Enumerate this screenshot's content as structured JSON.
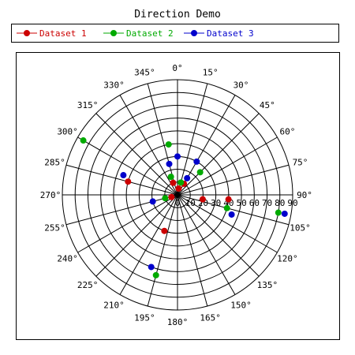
{
  "chart_data": {
    "type": "polar-scatter",
    "title": "Direction Demo",
    "legend_position": "top",
    "grid": true,
    "radial_axis": {
      "min": 0,
      "max": 90,
      "ticks": [
        0,
        10,
        20,
        30,
        40,
        50,
        60,
        70,
        80,
        90
      ],
      "tick_labels": [
        "0",
        "10",
        "20",
        "30",
        "40",
        "50",
        "60",
        "70",
        "80",
        "90"
      ]
    },
    "angular_axis": {
      "zero": "top",
      "direction": "clockwise",
      "ticks": [
        0,
        15,
        30,
        45,
        60,
        75,
        90,
        105,
        120,
        135,
        150,
        165,
        180,
        195,
        210,
        225,
        240,
        255,
        270,
        285,
        300,
        315,
        330,
        345
      ],
      "tick_labels": [
        "0°",
        "15°",
        "30°",
        "45°",
        "60°",
        "75°",
        "90°",
        "105°",
        "120°",
        "135°",
        "150°",
        "165°",
        "180°",
        "195°",
        "210°",
        "225°",
        "240°",
        "255°",
        "270°",
        "285°",
        "300°",
        "315°",
        "330°",
        "345°"
      ]
    },
    "series": [
      {
        "name": "Dataset 1",
        "color": "#cc0000",
        "points": [
          {
            "angle": 100,
            "r": 20
          },
          {
            "angle": 95,
            "r": 40
          },
          {
            "angle": 285,
            "r": 40
          },
          {
            "angle": 200,
            "r": 30
          },
          {
            "angle": 30,
            "r": 10
          },
          {
            "angle": 340,
            "r": 10
          },
          {
            "angle": 250,
            "r": 5
          },
          {
            "angle": 10,
            "r": 5
          }
        ]
      },
      {
        "name": "Dataset 2",
        "color": "#00aa00",
        "points": [
          {
            "angle": 300,
            "r": 85
          },
          {
            "angle": 350,
            "r": 40
          },
          {
            "angle": 45,
            "r": 25
          },
          {
            "angle": 100,
            "r": 80
          },
          {
            "angle": 105,
            "r": 40
          },
          {
            "angle": 195,
            "r": 65
          },
          {
            "angle": 15,
            "r": 10
          },
          {
            "angle": 255,
            "r": 10
          },
          {
            "angle": 340,
            "r": 15
          }
        ]
      },
      {
        "name": "Dataset 3",
        "color": "#0000cc",
        "points": [
          {
            "angle": 290,
            "r": 45
          },
          {
            "angle": 30,
            "r": 30
          },
          {
            "angle": 0,
            "r": 30
          },
          {
            "angle": 345,
            "r": 25
          },
          {
            "angle": 100,
            "r": 85
          },
          {
            "angle": 110,
            "r": 45
          },
          {
            "angle": 200,
            "r": 60
          },
          {
            "angle": 255,
            "r": 20
          },
          {
            "angle": 30,
            "r": 15
          }
        ]
      }
    ]
  }
}
